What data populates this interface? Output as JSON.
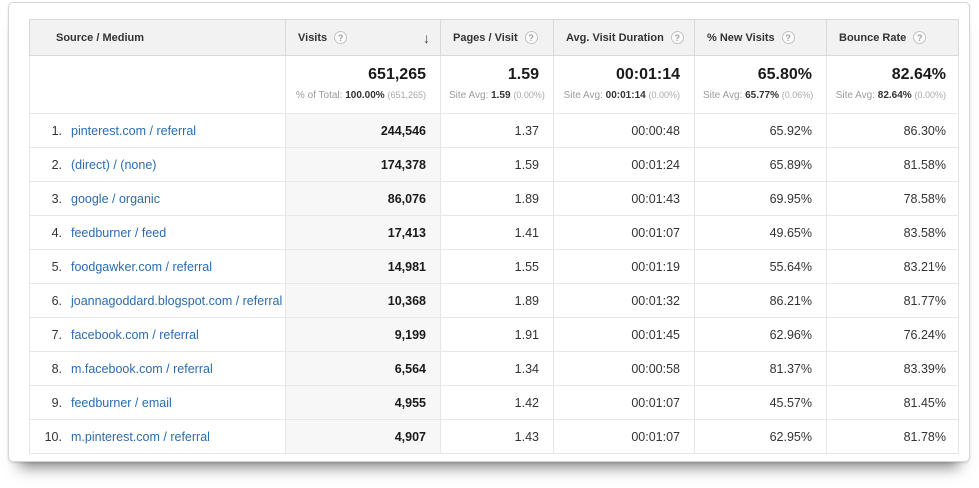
{
  "icons": {
    "help": "?",
    "sort_desc": "↓"
  },
  "colors": {
    "link_blue": "#2a6cb0",
    "header_bg": "#f2f2f2",
    "sorted_col_bg": "#f7f7f7",
    "border": "#e6e6e6"
  },
  "table": {
    "columns": [
      {
        "label": "Source / Medium"
      },
      {
        "label": "Visits"
      },
      {
        "label": "Pages / Visit"
      },
      {
        "label": "Avg. Visit Duration"
      },
      {
        "label": "% New Visits"
      },
      {
        "label": "Bounce Rate"
      }
    ],
    "sorted_column": "Visits",
    "summary": {
      "visits": {
        "value": "651,265",
        "sub_prefix": "% of Total: ",
        "sub_bold": "100.00%",
        "sub_paren": "(651,265)"
      },
      "pages": {
        "value": "1.59",
        "sub_prefix": "Site Avg: ",
        "sub_bold": "1.59",
        "sub_paren": "(0.00%)"
      },
      "duration": {
        "value": "00:01:14",
        "sub_prefix": "Site Avg: ",
        "sub_bold": "00:01:14",
        "sub_paren": "(0.00%)"
      },
      "new_visits": {
        "value": "65.80%",
        "sub_prefix": "Site Avg: ",
        "sub_bold": "65.77%",
        "sub_paren": "(0.06%)"
      },
      "bounce": {
        "value": "82.64%",
        "sub_prefix": "Site Avg: ",
        "sub_bold": "82.64%",
        "sub_paren": "(0.00%)"
      }
    },
    "rows": [
      {
        "rank": "1.",
        "source": "pinterest.com / referral",
        "visits": "244,546",
        "pages": "1.37",
        "duration": "00:00:48",
        "new_visits": "65.92%",
        "bounce": "86.30%"
      },
      {
        "rank": "2.",
        "source": "(direct) / (none)",
        "visits": "174,378",
        "pages": "1.59",
        "duration": "00:01:24",
        "new_visits": "65.89%",
        "bounce": "81.58%"
      },
      {
        "rank": "3.",
        "source": "google / organic",
        "visits": "86,076",
        "pages": "1.89",
        "duration": "00:01:43",
        "new_visits": "69.95%",
        "bounce": "78.58%"
      },
      {
        "rank": "4.",
        "source": "feedburner / feed",
        "visits": "17,413",
        "pages": "1.41",
        "duration": "00:01:07",
        "new_visits": "49.65%",
        "bounce": "83.58%"
      },
      {
        "rank": "5.",
        "source": "foodgawker.com / referral",
        "visits": "14,981",
        "pages": "1.55",
        "duration": "00:01:19",
        "new_visits": "55.64%",
        "bounce": "83.21%"
      },
      {
        "rank": "6.",
        "source": "joannagoddard.blogspot.com / referral",
        "visits": "10,368",
        "pages": "1.89",
        "duration": "00:01:32",
        "new_visits": "86.21%",
        "bounce": "81.77%"
      },
      {
        "rank": "7.",
        "source": "facebook.com / referral",
        "visits": "9,199",
        "pages": "1.91",
        "duration": "00:01:45",
        "new_visits": "62.96%",
        "bounce": "76.24%"
      },
      {
        "rank": "8.",
        "source": "m.facebook.com / referral",
        "visits": "6,564",
        "pages": "1.34",
        "duration": "00:00:58",
        "new_visits": "81.37%",
        "bounce": "83.39%"
      },
      {
        "rank": "9.",
        "source": "feedburner / email",
        "visits": "4,955",
        "pages": "1.42",
        "duration": "00:01:07",
        "new_visits": "45.57%",
        "bounce": "81.45%"
      },
      {
        "rank": "10.",
        "source": "m.pinterest.com / referral",
        "visits": "4,907",
        "pages": "1.43",
        "duration": "00:01:07",
        "new_visits": "62.95%",
        "bounce": "81.78%"
      }
    ]
  }
}
